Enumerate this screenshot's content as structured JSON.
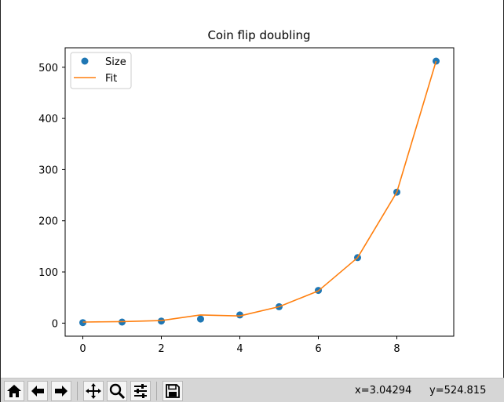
{
  "chart_data": {
    "type": "line",
    "title": "Coin flip doubling",
    "xlabel": "",
    "ylabel": "",
    "xlim": [
      -0.45,
      9.45
    ],
    "ylim": [
      -25.5,
      538
    ],
    "x_ticks": [
      0,
      2,
      4,
      6,
      8
    ],
    "x_tick_labels": [
      "0",
      "2",
      "4",
      "6",
      "8"
    ],
    "y_ticks": [
      0,
      100,
      200,
      300,
      400,
      500
    ],
    "y_tick_labels": [
      "0",
      "100",
      "200",
      "300",
      "400",
      "500"
    ],
    "grid": false,
    "legend": "upper-left",
    "series": [
      {
        "name": "Size",
        "kind": "scatter",
        "color": "#1f77b4",
        "x": [
          0,
          1,
          2,
          3,
          4,
          5,
          6,
          7,
          8,
          9
        ],
        "y": [
          1,
          2,
          4,
          8,
          16,
          32,
          64,
          128,
          256,
          512
        ]
      },
      {
        "name": "Fit",
        "kind": "line",
        "color": "#ff7f0e",
        "x": [
          0,
          1,
          2,
          3,
          4,
          5,
          6,
          7,
          8,
          9
        ],
        "y": [
          2,
          3,
          5,
          16,
          14,
          32,
          63,
          128,
          256,
          512
        ]
      }
    ]
  },
  "toolbar": {
    "buttons": [
      {
        "name": "home-button",
        "icon": "home-icon"
      },
      {
        "name": "back-button",
        "icon": "arrow-left-icon"
      },
      {
        "name": "forward-button",
        "icon": "arrow-right-icon"
      },
      {
        "name": "pan-button",
        "icon": "move-icon"
      },
      {
        "name": "zoom-button",
        "icon": "magnifier-icon"
      },
      {
        "name": "configure-subplots-button",
        "icon": "sliders-icon"
      },
      {
        "name": "save-button",
        "icon": "floppy-disk-icon"
      }
    ],
    "coord_x": "x=3.04294",
    "coord_y": "y=524.815"
  }
}
